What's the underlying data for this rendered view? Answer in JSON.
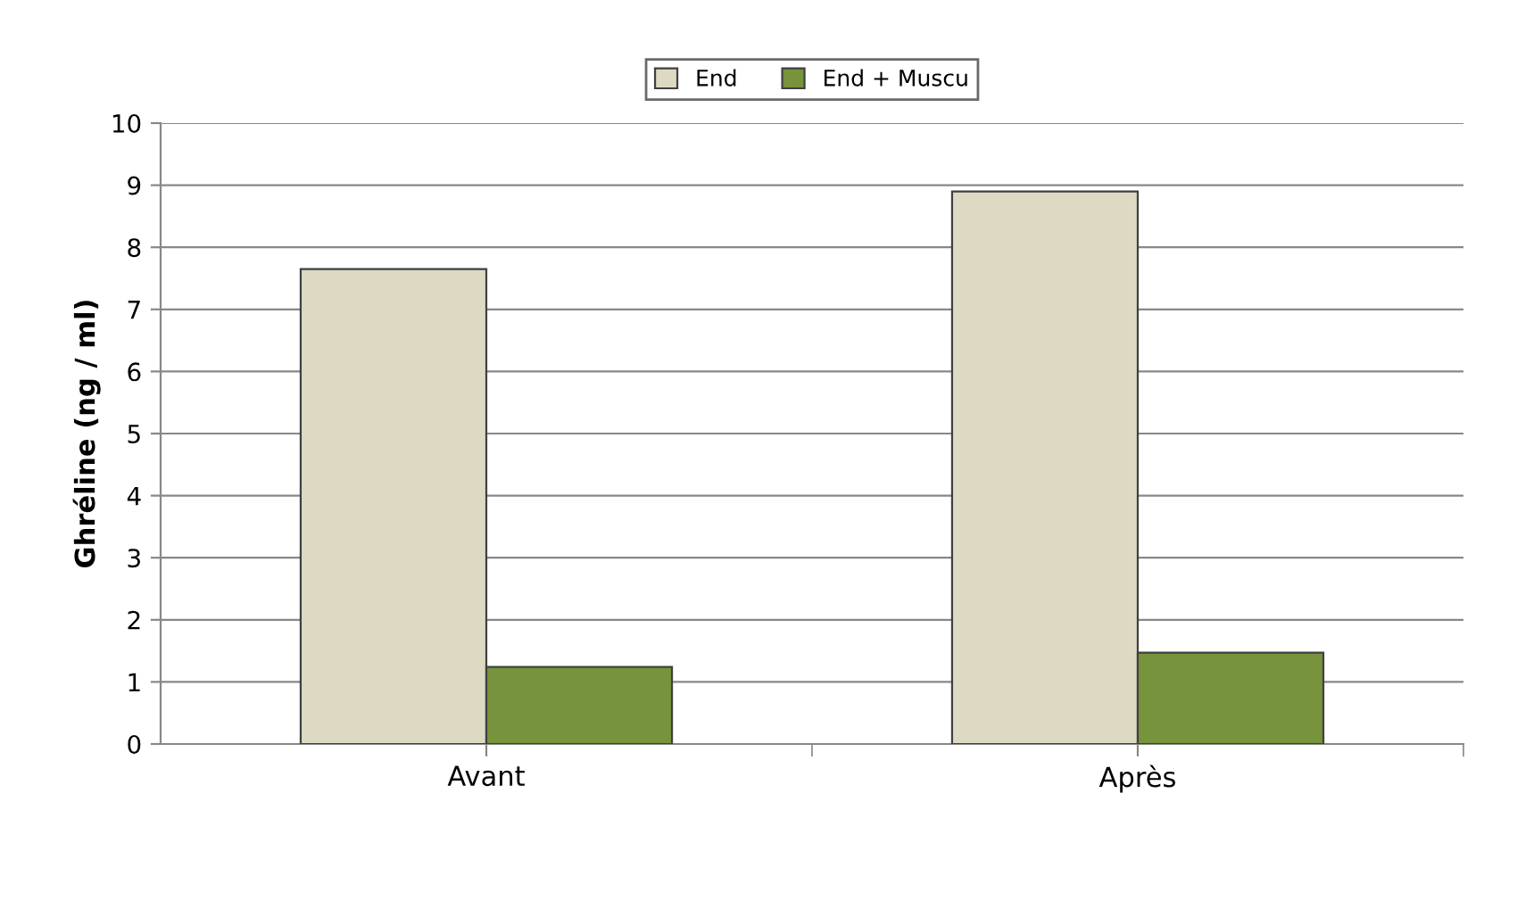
{
  "chart_data": {
    "type": "bar",
    "ylabel": "Ghréline (ng / ml)",
    "categories": [
      "Avant",
      "Après"
    ],
    "series": [
      {
        "name": "End",
        "color": "#ddd9c3",
        "values": [
          7.65,
          8.9
        ]
      },
      {
        "name": "End + Muscu",
        "color": "#77933c",
        "values": [
          1.24,
          1.47
        ]
      }
    ],
    "ylim": [
      0,
      10
    ],
    "yticks": [
      0,
      1,
      2,
      3,
      4,
      5,
      6,
      7,
      8,
      9,
      10
    ],
    "grid": "y",
    "legend": "top"
  }
}
